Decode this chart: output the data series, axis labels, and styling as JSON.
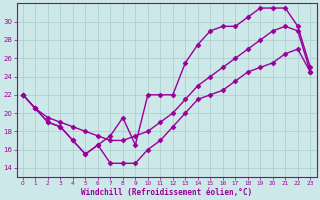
{
  "xlabel": "Windchill (Refroidissement éolien,°C)",
  "ylabel": "",
  "bg_color": "#cde8e8",
  "line_color": "#990099",
  "grid_color": "#aacccc",
  "xlim": [
    -0.5,
    23.5
  ],
  "ylim": [
    13,
    32
  ],
  "xticks": [
    0,
    1,
    2,
    3,
    4,
    5,
    6,
    7,
    8,
    9,
    10,
    11,
    12,
    13,
    14,
    15,
    16,
    17,
    18,
    19,
    20,
    21,
    22,
    23
  ],
  "yticks": [
    14,
    16,
    18,
    20,
    22,
    24,
    26,
    28,
    30
  ],
  "series1_x": [
    0,
    1,
    2,
    3,
    4,
    5,
    6,
    7,
    8,
    9,
    10,
    11,
    12,
    13,
    14,
    15,
    16,
    17,
    18,
    19,
    20,
    21,
    22,
    23
  ],
  "series1_y": [
    22,
    20.5,
    19,
    18.5,
    17,
    15.5,
    16.5,
    17.5,
    19.5,
    16.5,
    22,
    22,
    22,
    25.5,
    27.5,
    29,
    29.5,
    29.5,
    30.5,
    31.5,
    31.5,
    31.5,
    29.5,
    25
  ],
  "series2_x": [
    0,
    1,
    2,
    3,
    4,
    5,
    6,
    7,
    8,
    9,
    10,
    11,
    12,
    13,
    14,
    15,
    16,
    17,
    18,
    19,
    20,
    21,
    22,
    23
  ],
  "series2_y": [
    22,
    20.5,
    19,
    18.5,
    17,
    15.5,
    16.5,
    14.5,
    14.5,
    14.5,
    16,
    17,
    18.5,
    20,
    21.5,
    22,
    22.5,
    23.5,
    24.5,
    25,
    25.5,
    26.5,
    27,
    24.5
  ],
  "series3_x": [
    0,
    1,
    2,
    3,
    4,
    5,
    6,
    7,
    8,
    9,
    10,
    11,
    12,
    13,
    14,
    15,
    16,
    17,
    18,
    19,
    20,
    21,
    22,
    23
  ],
  "series3_y": [
    22,
    20.5,
    19.5,
    19,
    18.5,
    18,
    17.5,
    17,
    17,
    17.5,
    18,
    19,
    20,
    21.5,
    23,
    24,
    25,
    26,
    27,
    28,
    29,
    29.5,
    29,
    24.5
  ],
  "marker": "D",
  "markersize": 2.5,
  "linewidth": 1.0
}
